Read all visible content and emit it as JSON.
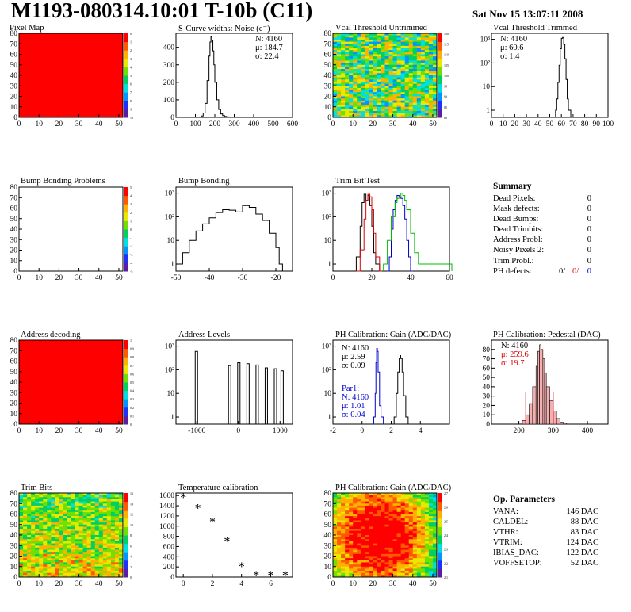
{
  "header": {
    "title": "M1193-080314.10:01 T-10b (C11)",
    "date": "Sat Nov 15 13:07:11 2008"
  },
  "panels": [
    {
      "id": "pixel_map",
      "title": "Pixel Map"
    },
    {
      "id": "scurve",
      "title": "S-Curve widths: Noise (e⁻)"
    },
    {
      "id": "vcal_untrimmed",
      "title": "Vcal Threshold Untrimmed"
    },
    {
      "id": "vcal_trimmed",
      "title": "Vcal Threshold Trimmed"
    },
    {
      "id": "bump_problems",
      "title": "Bump Bonding Problems"
    },
    {
      "id": "bump_bonding",
      "title": "Bump Bonding"
    },
    {
      "id": "trim_bit_test",
      "title": "Trim Bit Test"
    },
    {
      "id": "address_decoding",
      "title": "Address decoding"
    },
    {
      "id": "address_levels",
      "title": "Address Levels"
    },
    {
      "id": "ph_gain",
      "title": "PH Calibration: Gain (ADC/DAC)"
    },
    {
      "id": "ph_pedestal",
      "title": "PH Calibration: Pedestal (DAC)"
    },
    {
      "id": "trim_bits",
      "title": "Trim Bits"
    },
    {
      "id": "temperature",
      "title": "Temperature calibration"
    },
    {
      "id": "ph_gain_map",
      "title": "PH Calibration: Gain (ADC/DAC)"
    }
  ],
  "stats": {
    "scurve": [
      "N: 4160",
      "μ: 184.7",
      "σ: 22.4"
    ],
    "vcal_trimmed": [
      "N: 4160",
      "μ: 60.6",
      "σ:  1.4"
    ],
    "ph_gain": [
      "N: 4160",
      "μ: 2.59",
      "σ: 0.09"
    ],
    "ph_gain_par1": [
      "Par1:",
      "N: 4160",
      "μ: 1.01",
      "σ: 0.04"
    ],
    "ph_pedestal": [
      "N: 4160",
      "μ: 259.6",
      "σ: 19.7"
    ]
  },
  "summary": {
    "heading": "Summary",
    "rows": [
      {
        "label": "Dead Pixels:",
        "value": "0"
      },
      {
        "label": "Mask defects:",
        "value": "0"
      },
      {
        "label": "Dead Bumps:",
        "value": "0"
      },
      {
        "label": "Dead Trimbits:",
        "value": "0"
      },
      {
        "label": "Address Probl:",
        "value": "0"
      },
      {
        "label": "Noisy Pixels 2:",
        "value": "0"
      },
      {
        "label": "Trim Probl.:",
        "value": "0"
      }
    ],
    "ph_defects": {
      "label": "PH defects:",
      "values": [
        "0/",
        "0/",
        "0"
      ],
      "colors": [
        "#000000",
        "#dd0000",
        "#0000cc"
      ]
    }
  },
  "op_params": {
    "heading": "Op. Parameters",
    "rows": [
      {
        "label": "VANA:",
        "value": "146 DAC"
      },
      {
        "label": "CALDEL:",
        "value": "88 DAC"
      },
      {
        "label": "VTHR:",
        "value": "83 DAC"
      },
      {
        "label": "VTRIM:",
        "value": "124 DAC"
      },
      {
        "label": "IBIAS_DAC:",
        "value": "122 DAC"
      },
      {
        "label": "VOFFSETOP:",
        "value": "52 DAC"
      }
    ]
  },
  "chart_data": [
    {
      "id": "pixel_map",
      "type": "heatmap",
      "xlim": [
        0,
        52
      ],
      "ylim": [
        0,
        80
      ],
      "fill": "#ff0000",
      "xticks": [
        0,
        10,
        20,
        30,
        40,
        50
      ],
      "yticks": [
        0,
        10,
        20,
        30,
        40,
        50,
        60,
        70,
        80
      ],
      "zticks": [
        "0",
        "1",
        "2",
        "3",
        "4",
        "5",
        "6",
        "7",
        "8",
        "9",
        "10"
      ]
    },
    {
      "id": "scurve",
      "type": "line",
      "xlim": [
        0,
        600
      ],
      "ylim": [
        0,
        480
      ],
      "xticks": [
        0,
        100,
        200,
        300,
        400,
        500,
        600
      ],
      "yticks": [
        0,
        100,
        200,
        300,
        400
      ],
      "x": [
        100,
        120,
        130,
        140,
        150,
        160,
        170,
        175,
        180,
        185,
        190,
        195,
        200,
        210,
        220,
        230,
        240,
        250,
        260,
        270,
        280,
        290,
        300,
        320
      ],
      "y": [
        0,
        2,
        8,
        25,
        80,
        210,
        350,
        430,
        460,
        440,
        380,
        300,
        200,
        100,
        45,
        20,
        10,
        5,
        3,
        2,
        1,
        1,
        1,
        0
      ]
    },
    {
      "id": "vcal_untrimmed",
      "type": "heatmap",
      "xlim": [
        0,
        52
      ],
      "ylim": [
        0,
        80
      ],
      "xticks": [
        0,
        10,
        20,
        30,
        40,
        50
      ],
      "yticks": [
        0,
        10,
        20,
        30,
        40,
        50,
        60,
        70,
        80
      ],
      "zticks": [
        "120",
        "115",
        "110",
        "105",
        "100",
        "95",
        "90",
        "85",
        "80"
      ]
    },
    {
      "id": "vcal_trimmed",
      "type": "line",
      "scale": "log",
      "xlim": [
        0,
        100
      ],
      "ylim": [
        0.5,
        1800
      ],
      "xticks": [
        0,
        10,
        20,
        30,
        40,
        50,
        60,
        70,
        80,
        90,
        100
      ],
      "yticks": [
        1,
        10,
        100,
        1000
      ],
      "ytick_labels": [
        "1",
        "10",
        "10²",
        "10³"
      ],
      "x": [
        55,
        56,
        57,
        58,
        59,
        60,
        61,
        62,
        63,
        64,
        65,
        66
      ],
      "y": [
        1,
        3,
        15,
        80,
        400,
        1100,
        1200,
        600,
        150,
        20,
        3,
        1
      ]
    },
    {
      "id": "bump_problems",
      "type": "heatmap",
      "xlim": [
        0,
        52
      ],
      "ylim": [
        0,
        80
      ],
      "fill": "#ffffff",
      "xticks": [
        0,
        10,
        20,
        30,
        40,
        50
      ],
      "yticks": [
        0,
        10,
        20,
        30,
        40,
        50,
        60,
        70,
        80
      ],
      "zticks": [
        "5",
        "4",
        "3",
        "2",
        "1",
        "0",
        "-1",
        "-2",
        "-3",
        "-4",
        "-5"
      ]
    },
    {
      "id": "bump_bonding",
      "type": "line",
      "scale": "log",
      "xlim": [
        -50,
        -15
      ],
      "ylim": [
        0.5,
        1800
      ],
      "xticks": [
        -50,
        -40,
        -30,
        -20
      ],
      "yticks": [
        1,
        10,
        100,
        1000
      ],
      "ytick_labels": [
        "1",
        "10",
        "10²",
        "10³"
      ],
      "x": [
        -50,
        -48,
        -46,
        -44,
        -42,
        -40,
        -38,
        -36,
        -34,
        -32,
        -30,
        -28,
        -26,
        -24,
        -22,
        -20,
        -19,
        -18
      ],
      "y": [
        1,
        3,
        10,
        25,
        50,
        90,
        150,
        200,
        190,
        160,
        300,
        250,
        130,
        70,
        20,
        5,
        1,
        0.5
      ]
    },
    {
      "id": "trim_bit_test",
      "type": "line",
      "scale": "log",
      "xlim": [
        0,
        60
      ],
      "ylim": [
        0.5,
        1800
      ],
      "xticks": [
        0,
        20,
        40,
        60
      ],
      "yticks": [
        1,
        10,
        100,
        1000
      ],
      "ytick_labels": [
        "1",
        "10",
        "10²",
        "10³"
      ],
      "series": [
        {
          "color": "#000000",
          "x": [
            10,
            12,
            14,
            15,
            16,
            17,
            18,
            19,
            20,
            21,
            22,
            24
          ],
          "y": [
            0.5,
            2,
            40,
            400,
            900,
            500,
            800,
            300,
            40,
            3,
            1,
            0.5
          ]
        },
        {
          "color": "#dd0000",
          "x": [
            12,
            14,
            16,
            17,
            18,
            19,
            20,
            21,
            22,
            24
          ],
          "y": [
            0.5,
            4,
            80,
            500,
            900,
            700,
            200,
            20,
            2,
            0.5
          ]
        },
        {
          "color": "#0000cc",
          "x": [
            28,
            29,
            30,
            31,
            32,
            33,
            34,
            35,
            36,
            37,
            38,
            39,
            40
          ],
          "y": [
            0.5,
            2,
            30,
            200,
            500,
            800,
            700,
            600,
            300,
            80,
            10,
            2,
            0.5
          ]
        },
        {
          "color": "#00bb00",
          "x": [
            26,
            28,
            30,
            32,
            33,
            34,
            35,
            36,
            37,
            38,
            40,
            42,
            44,
            60
          ],
          "y": [
            1,
            10,
            100,
            400,
            600,
            700,
            1000,
            800,
            500,
            200,
            20,
            3,
            1,
            1
          ]
        }
      ]
    },
    {
      "id": "address_decoding",
      "type": "heatmap",
      "xlim": [
        0,
        52
      ],
      "ylim": [
        0,
        80
      ],
      "fill": "#ff0000",
      "xticks": [
        0,
        10,
        20,
        30,
        40,
        50
      ],
      "yticks": [
        0,
        10,
        20,
        30,
        40,
        50,
        60,
        70,
        80
      ],
      "zticks": [
        "1",
        "0.9",
        "0.8",
        "0.7",
        "0.6",
        "0.5",
        "0.4",
        "0.3",
        "0.2",
        "0.1",
        "0"
      ]
    },
    {
      "id": "address_levels",
      "type": "line",
      "scale": "log",
      "xlim": [
        -1500,
        1300
      ],
      "ylim": [
        0.5,
        1800
      ],
      "xticks": [
        -1000,
        0,
        1000
      ],
      "yticks": [
        1,
        10,
        100,
        1000
      ],
      "ytick_labels": [
        "1",
        "10",
        "10²",
        "10³"
      ],
      "x": [
        -1000,
        -200,
        20,
        240,
        460,
        680,
        900,
        1060
      ],
      "y": [
        600,
        150,
        200,
        180,
        160,
        120,
        110,
        90
      ]
    },
    {
      "id": "ph_gain",
      "type": "line",
      "scale": "log",
      "xlim": [
        -2,
        6
      ],
      "ylim": [
        0.5,
        1800
      ],
      "xticks": [
        -2,
        0,
        2,
        4
      ],
      "yticks": [
        1,
        10,
        100,
        1000
      ],
      "ytick_labels": [
        "1",
        "10",
        "10²",
        "10³"
      ],
      "series": [
        {
          "color": "#000000",
          "x": [
            2.2,
            2.35,
            2.45,
            2.55,
            2.6,
            2.65,
            2.75,
            2.85,
            3.0
          ],
          "y": [
            1,
            10,
            80,
            300,
            400,
            300,
            80,
            8,
            1
          ]
        },
        {
          "color": "#0000cc",
          "x": [
            0.8,
            0.9,
            0.95,
            1.0,
            1.05,
            1.1,
            1.2,
            1.3
          ],
          "y": [
            1,
            10,
            200,
            800,
            600,
            80,
            3,
            1
          ]
        }
      ]
    },
    {
      "id": "ph_pedestal",
      "type": "bar",
      "xlim": [
        120,
        460
      ],
      "ylim": [
        0,
        90
      ],
      "xticks": [
        200,
        300,
        400
      ],
      "yticks": [
        0,
        10,
        20,
        30,
        40,
        50,
        60,
        70,
        80
      ],
      "x": [
        200,
        210,
        220,
        230,
        240,
        250,
        255,
        260,
        265,
        270,
        275,
        280,
        290,
        300,
        310,
        320,
        330
      ],
      "y": [
        1,
        4,
        10,
        22,
        40,
        62,
        78,
        85,
        80,
        70,
        55,
        40,
        25,
        14,
        6,
        2,
        1
      ],
      "cuts": [
        220,
        300
      ]
    },
    {
      "id": "trim_bits",
      "type": "heatmap",
      "xlim": [
        0,
        52
      ],
      "ylim": [
        0,
        80
      ],
      "xticks": [
        0,
        10,
        20,
        30,
        40,
        50
      ],
      "yticks": [
        0,
        10,
        20,
        30,
        40,
        50,
        60,
        70,
        80
      ],
      "zticks": [
        "16",
        "14",
        "12",
        "10",
        "8",
        "6",
        "4",
        "2",
        "0"
      ]
    },
    {
      "id": "temperature",
      "type": "scatter",
      "xlim": [
        -0.5,
        7.5
      ],
      "ylim": [
        0,
        1650
      ],
      "xticks": [
        0,
        2,
        4,
        6
      ],
      "yticks": [
        0,
        200,
        400,
        600,
        800,
        1000,
        1200,
        1400,
        1600
      ],
      "x": [
        0,
        1,
        2,
        3,
        4,
        5,
        6,
        7
      ],
      "y": [
        1560,
        1350,
        1080,
        700,
        200,
        30,
        30,
        30
      ]
    },
    {
      "id": "ph_gain_map",
      "type": "heatmap",
      "xlim": [
        0,
        52
      ],
      "ylim": [
        0,
        80
      ],
      "xticks": [
        0,
        10,
        20,
        30,
        40,
        50
      ],
      "yticks": [
        0,
        10,
        20,
        30,
        40,
        50,
        60,
        70,
        80
      ],
      "zticks": [
        "2.7",
        "2.6",
        "2.5",
        "2.4",
        "2.3",
        "2.2",
        "2.1"
      ]
    }
  ]
}
